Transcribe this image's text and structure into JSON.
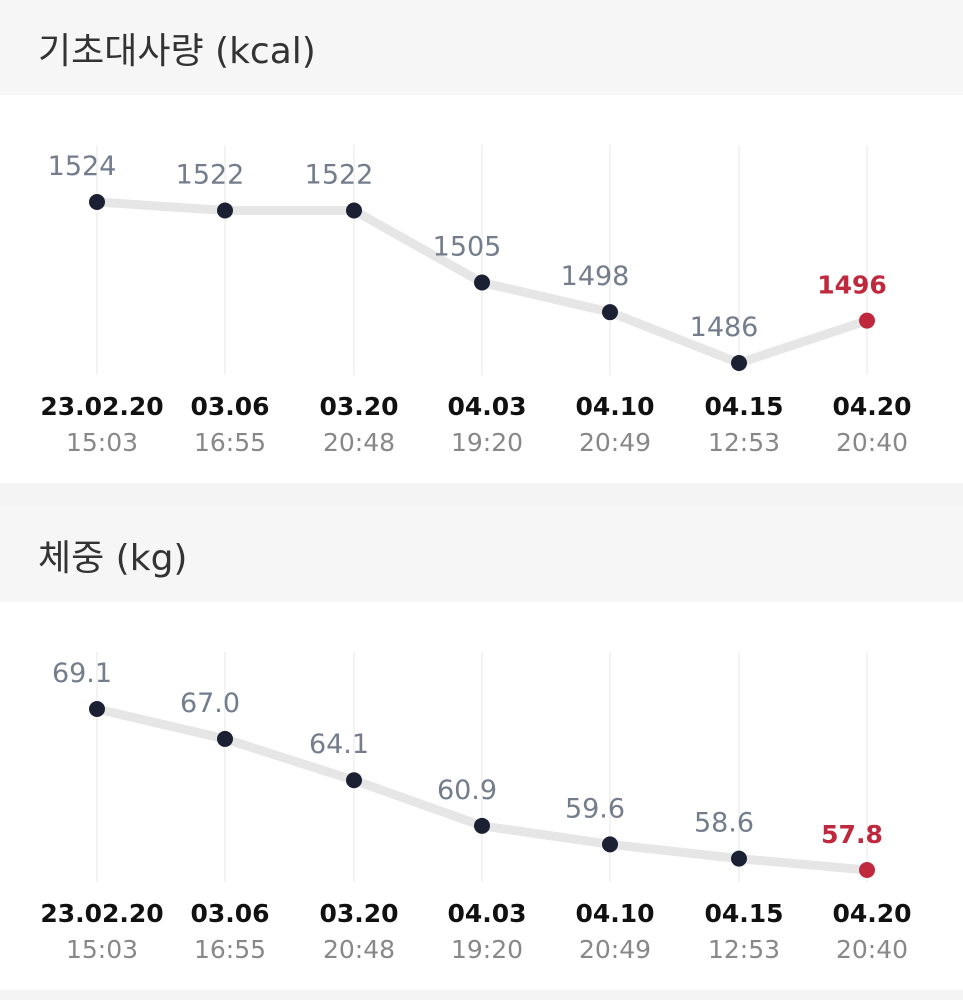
{
  "sections": [
    {
      "title": "기초대사량 (kcal)",
      "chart_data": {
        "type": "line",
        "title": "기초대사량 (kcal)",
        "x": [
          {
            "date": "23.02.20",
            "time": "15:03"
          },
          {
            "date": "03.06",
            "time": "16:55"
          },
          {
            "date": "03.20",
            "time": "20:48"
          },
          {
            "date": "04.03",
            "time": "19:20"
          },
          {
            "date": "04.10",
            "time": "20:49"
          },
          {
            "date": "04.15",
            "time": "12:53"
          },
          {
            "date": "04.20",
            "time": "20:40"
          }
        ],
        "values": [
          1524,
          1522,
          1522,
          1505,
          1498,
          1486,
          1496
        ],
        "value_labels": [
          "1524",
          "1522",
          "1522",
          "1505",
          "1498",
          "1486",
          "1496"
        ],
        "highlight_index": 6,
        "ylim": [
          1486,
          1524
        ]
      }
    },
    {
      "title": "체중 (kg)",
      "chart_data": {
        "type": "line",
        "title": "체중 (kg)",
        "x": [
          {
            "date": "23.02.20",
            "time": "15:03"
          },
          {
            "date": "03.06",
            "time": "16:55"
          },
          {
            "date": "03.20",
            "time": "20:48"
          },
          {
            "date": "04.03",
            "time": "19:20"
          },
          {
            "date": "04.10",
            "time": "20:49"
          },
          {
            "date": "04.15",
            "time": "12:53"
          },
          {
            "date": "04.20",
            "time": "20:40"
          }
        ],
        "values": [
          69.1,
          67.0,
          64.1,
          60.9,
          59.6,
          58.6,
          57.8
        ],
        "value_labels": [
          "69.1",
          "67.0",
          "64.1",
          "60.9",
          "59.6",
          "58.6",
          "57.8"
        ],
        "highlight_index": 6,
        "ylim": [
          57.8,
          69.1
        ]
      }
    }
  ],
  "colors": {
    "line": "#e6e6e6",
    "point": "#1c2033",
    "highlight": "#c0283d",
    "value_label": "#737d8c",
    "date_label": "#111111",
    "time_label": "#888888",
    "grid": "#efefef"
  }
}
